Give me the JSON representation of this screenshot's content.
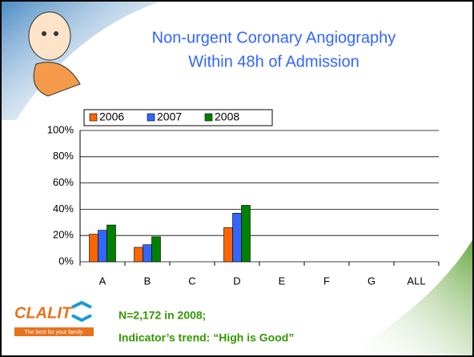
{
  "chart_data": {
    "type": "bar",
    "title": "Non-urgent Coronary Angiography",
    "subtitle": "Within 48h of Admission",
    "categories": [
      "A",
      "B",
      "C",
      "D",
      "E",
      "F",
      "G",
      "ALL"
    ],
    "series": [
      {
        "name": "2006",
        "color": "#ff6600",
        "values": [
          21,
          11,
          null,
          26,
          null,
          null,
          null,
          null
        ]
      },
      {
        "name": "2007",
        "color": "#3366ff",
        "values": [
          24,
          13,
          null,
          37,
          null,
          null,
          null,
          null
        ]
      },
      {
        "name": "2008",
        "color": "#008000",
        "values": [
          28,
          19,
          null,
          43,
          null,
          null,
          null,
          null
        ]
      }
    ],
    "ylim": [
      0,
      100
    ],
    "yticks": [
      {
        "value": 0,
        "label": "0%"
      },
      {
        "value": 20,
        "label": "20%"
      },
      {
        "value": 40,
        "label": "40%"
      },
      {
        "value": 60,
        "label": "60%"
      },
      {
        "value": 80,
        "label": "80%"
      },
      {
        "value": 100,
        "label": "100%"
      }
    ],
    "grid": true
  },
  "logo": {
    "name": "CLALIT",
    "tagline": "The best for your family"
  },
  "notes": [
    "N=2,172 in 2008;",
    "Indicator’s trend: “High is Good”"
  ]
}
